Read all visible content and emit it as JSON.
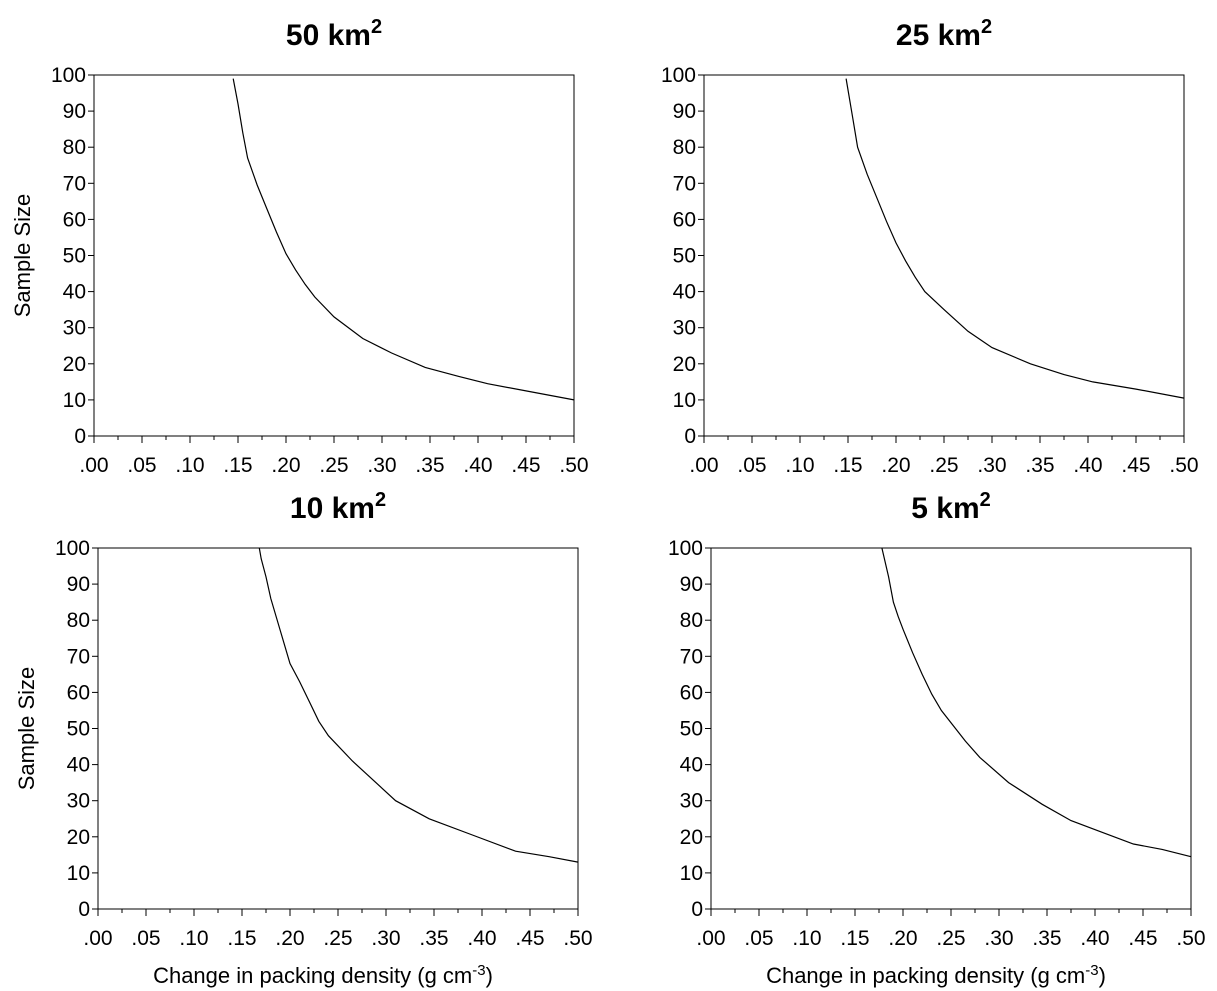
{
  "chart_data": [
    {
      "type": "line",
      "title": "50 km",
      "title_sup": "2",
      "ylabel": "Sample Size",
      "xlabel": "",
      "xlabel_sup": "",
      "xlabel_end": "",
      "xlim": [
        0,
        0.5
      ],
      "ylim": [
        0,
        100
      ],
      "x_ticks": [
        ".00",
        ".05",
        ".10",
        ".15",
        ".20",
        ".25",
        ".30",
        ".35",
        ".40",
        ".45",
        ".50"
      ],
      "y_ticks": [
        "0",
        "10",
        "20",
        "30",
        "40",
        "50",
        "60",
        "70",
        "80",
        "90",
        "100"
      ],
      "x": [
        0.145,
        0.15,
        0.155,
        0.16,
        0.17,
        0.18,
        0.19,
        0.2,
        0.21,
        0.22,
        0.23,
        0.25,
        0.28,
        0.31,
        0.345,
        0.38,
        0.41,
        0.45,
        0.5
      ],
      "y": [
        99,
        92,
        84,
        77,
        69.5,
        63,
        56.5,
        50.5,
        46,
        42,
        38.5,
        33,
        27,
        23,
        19,
        16.5,
        14.5,
        12.5,
        10
      ]
    },
    {
      "type": "line",
      "title": "25 km",
      "title_sup": "2",
      "ylabel": "",
      "xlabel": "",
      "xlabel_sup": "",
      "xlabel_end": "",
      "xlim": [
        0,
        0.5
      ],
      "ylim": [
        0,
        100
      ],
      "x_ticks": [
        ".00",
        ".05",
        ".10",
        ".15",
        ".20",
        ".25",
        ".30",
        ".35",
        ".40",
        ".45",
        ".50"
      ],
      "y_ticks": [
        "0",
        "10",
        "20",
        "30",
        "40",
        "50",
        "60",
        "70",
        "80",
        "90",
        "100"
      ],
      "x": [
        0.148,
        0.155,
        0.16,
        0.17,
        0.18,
        0.19,
        0.2,
        0.21,
        0.22,
        0.23,
        0.25,
        0.275,
        0.3,
        0.34,
        0.375,
        0.405,
        0.45,
        0.5
      ],
      "y": [
        99,
        88,
        80,
        72.5,
        66,
        59.5,
        53.5,
        48.5,
        44,
        40,
        35,
        29,
        24.5,
        20,
        17,
        15,
        13,
        10.5
      ]
    },
    {
      "type": "line",
      "title": "10 km",
      "title_sup": "2",
      "ylabel": "Sample Size",
      "xlabel": "Change  in packing density  (g cm",
      "xlabel_sup": "-3",
      "xlabel_end": ")",
      "xlim": [
        0,
        0.5
      ],
      "ylim": [
        0,
        100
      ],
      "x_ticks": [
        ".00",
        ".05",
        ".10",
        ".15",
        ".20",
        ".25",
        ".30",
        ".35",
        ".40",
        ".45",
        ".50"
      ],
      "y_ticks": [
        "0",
        "10",
        "20",
        "30",
        "40",
        "50",
        "60",
        "70",
        "80",
        "90",
        "100"
      ],
      "x": [
        0.168,
        0.17,
        0.175,
        0.18,
        0.19,
        0.2,
        0.21,
        0.22,
        0.23,
        0.24,
        0.265,
        0.31,
        0.345,
        0.39,
        0.435,
        0.47,
        0.5
      ],
      "y": [
        100,
        97,
        92,
        86,
        77,
        68,
        63,
        57.5,
        52,
        48,
        41,
        30,
        25,
        20.5,
        16,
        14.5,
        13
      ]
    },
    {
      "type": "line",
      "title": "5 km",
      "title_sup": "2",
      "ylabel": "",
      "xlabel": "Change  in packing density  (g cm",
      "xlabel_sup": "-3",
      "xlabel_end": ")",
      "xlim": [
        0,
        0.5
      ],
      "ylim": [
        0,
        100
      ],
      "x_ticks": [
        ".00",
        ".05",
        ".10",
        ".15",
        ".20",
        ".25",
        ".30",
        ".35",
        ".40",
        ".45",
        ".50"
      ],
      "y_ticks": [
        "0",
        "10",
        "20",
        "30",
        "40",
        "50",
        "60",
        "70",
        "80",
        "90",
        "100"
      ],
      "x": [
        0.178,
        0.185,
        0.19,
        0.195,
        0.2,
        0.21,
        0.22,
        0.23,
        0.24,
        0.265,
        0.28,
        0.31,
        0.345,
        0.375,
        0.405,
        0.44,
        0.47,
        0.5
      ],
      "y": [
        100,
        92,
        85,
        81,
        77.5,
        71,
        65,
        59.5,
        55,
        46.5,
        42,
        35,
        29,
        24.5,
        21.5,
        18,
        16.5,
        14.5
      ]
    }
  ]
}
